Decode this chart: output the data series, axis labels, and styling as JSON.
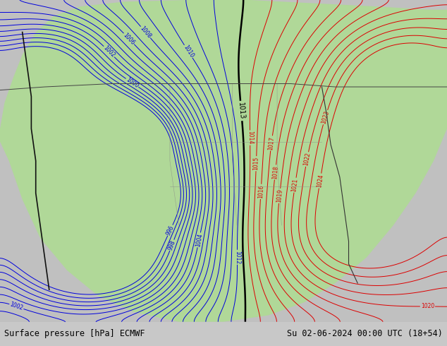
{
  "title_left": "Surface pressure [hPa] ECMWF",
  "title_right": "Su 02-06-2024 00:00 UTC (18+54)",
  "bg_color": "#c8c8c8",
  "land_color": "#b0d898",
  "ocean_color": "#c0c0c0",
  "fig_width": 6.34,
  "fig_height": 4.9,
  "dpi": 100,
  "bottom_bar_color": "#d8d8d8",
  "bottom_text_color": "#000000",
  "isobar_blue_color": "#0000dd",
  "isobar_red_color": "#dd0000",
  "isobar_black_color": "#000000",
  "levels_blue_min": 996,
  "levels_blue_max": 1013,
  "levels_blue_step": 1,
  "levels_red_min": 1014,
  "levels_red_max": 1025,
  "levels_red_step": 1,
  "level_black": 1013
}
